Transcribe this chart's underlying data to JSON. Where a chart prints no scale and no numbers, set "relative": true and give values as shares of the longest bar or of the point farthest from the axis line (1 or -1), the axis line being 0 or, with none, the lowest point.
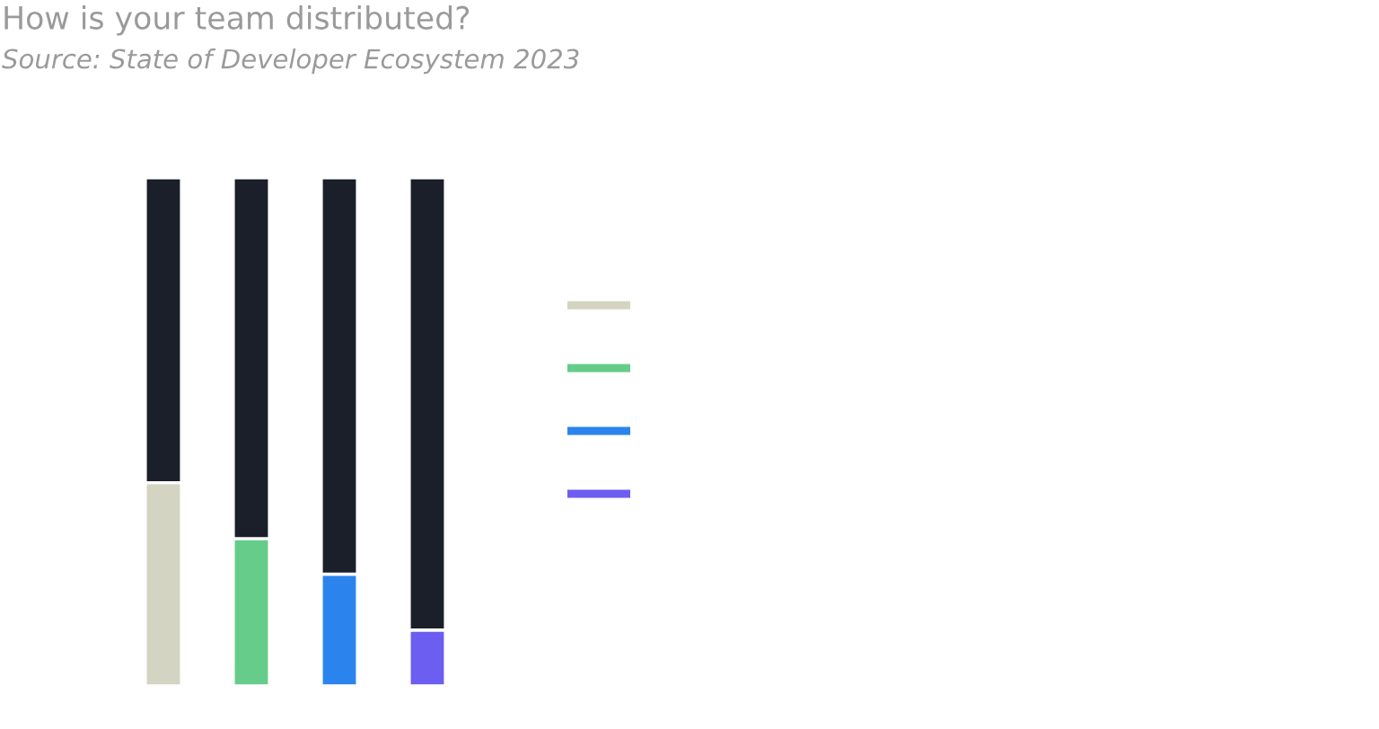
{
  "chart_data": {
    "type": "bar",
    "title": "How is your team distributed?",
    "subtitle": "Source: State of Developer Ecosystem 2023",
    "categories": [
      null,
      null,
      null,
      null
    ],
    "stacked": true,
    "relative": true,
    "series": [
      {
        "colors": [
          "#d3d4c1",
          "#66cc8a",
          "#2b84ee",
          "#6b5ef0"
        ],
        "values": [
          0.4,
          0.29,
          0.22,
          0.11
        ]
      },
      {
        "color": "#1b1f2a",
        "values": [
          0.6,
          0.71,
          0.78,
          0.89
        ]
      }
    ]
  }
}
